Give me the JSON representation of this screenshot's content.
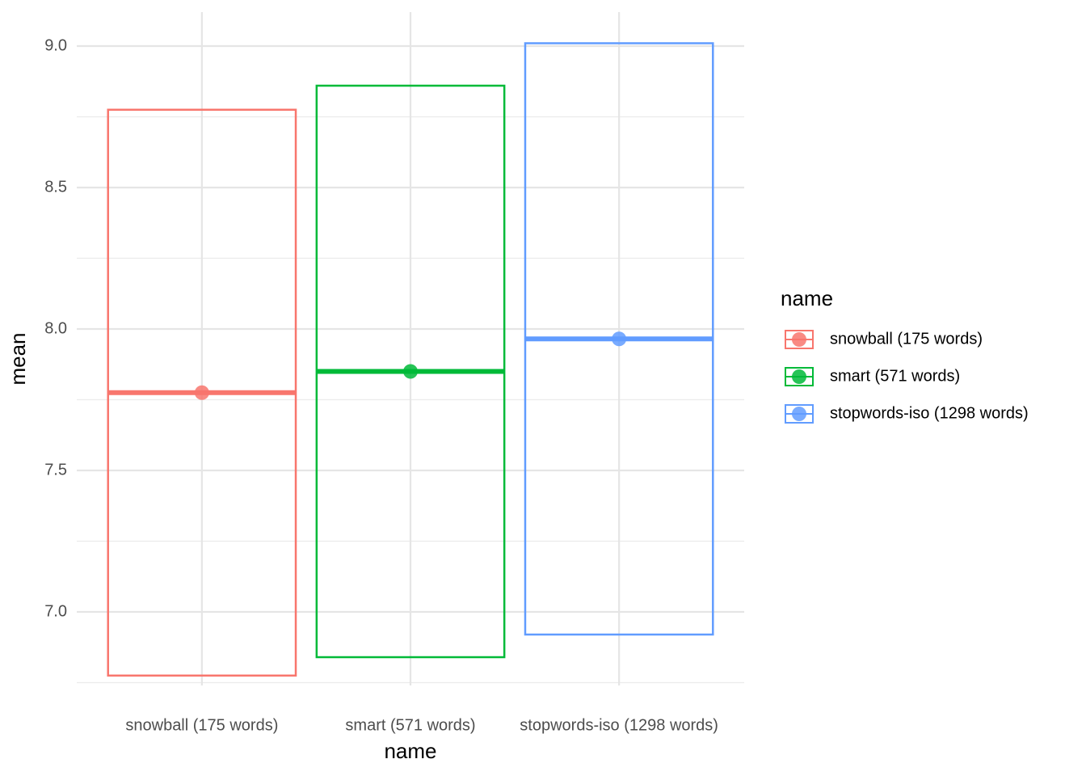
{
  "chart_data": {
    "type": "crossbar",
    "x_label": "name",
    "y_label": "mean",
    "legend_title": "name",
    "categories": [
      "snowball (175 words)",
      "smart (571 words)",
      "stopwords-iso (1298 words)"
    ],
    "colors": [
      "#F8766D",
      "#00BA38",
      "#619CFF"
    ],
    "mean": [
      7.775,
      7.85,
      7.965
    ],
    "lower": [
      6.775,
      6.84,
      6.92
    ],
    "upper": [
      8.775,
      8.86,
      9.01
    ],
    "ylim": [
      6.74,
      9.12
    ],
    "yticks": [
      {
        "value": 7,
        "label": "7.0"
      },
      7.5,
      {
        "value": 8,
        "label": "8.0"
      },
      8.5,
      {
        "value": 9,
        "label": "9.0"
      }
    ],
    "minor_yticks": [
      6.75,
      7.25,
      7.75,
      8.25,
      8.75
    ],
    "grid": true
  }
}
